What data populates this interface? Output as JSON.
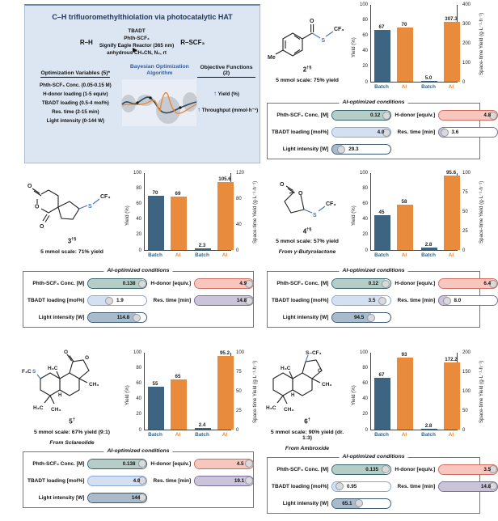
{
  "colors": {
    "batch_bar": "#3d6480",
    "ai_bar": "#e88b3c",
    "header_bg": "#dce6f3",
    "navy_text": "#1f3864",
    "bond_blue": "#4472c4"
  },
  "header": {
    "title": "C–H trifluoromethylthiolation via photocatalytic HAT",
    "reactant": "R–H",
    "product": "R–SCF₃",
    "arrow_above": [
      "TBADT",
      "Phth-SCF₃",
      "Signify Eagle Reactor (365 nm)"
    ],
    "arrow_below": "anhydrous CH₃CN, N₂, rt",
    "variables_title": "Optimization Variables (5)*",
    "variables": [
      "Phth-SCF₃ Conc. (0.05-0.15 M)",
      "H-donor loading (1-5 equiv)",
      "TBADT loading (0.5-4 mol%)",
      "Res. time (2-15 min)",
      "Light intensity (0-144 W)"
    ],
    "bo_title": "Bayesian Optimization Algorithm",
    "objectives_title": "Objective Functions (2)",
    "objectives": [
      {
        "arrow": "↑",
        "label": "Yield (%)"
      },
      {
        "arrow": "↑",
        "label": "Throughput (mmol·h⁻¹)"
      }
    ]
  },
  "axis": {
    "left_label": "Yield (%)",
    "right_label": "Space-time Yield (g·L⁻¹·h⁻¹)",
    "categories": [
      "Batch",
      "AI",
      "Batch",
      "AI"
    ]
  },
  "conditions_labels": {
    "box_title": "AI-optimized conditions",
    "conc": "Phth-SCF₃ Conc. [M]",
    "hdonor": "H-donor [equiv.]",
    "tbadt": "TBADT loading [mol%]",
    "res": "Res. time [min]",
    "light": "Light intensity [W]"
  },
  "panels": [
    {
      "compound_number": "2",
      "compound_sup": "†§",
      "scale_note": "5 mmol scale: 75% yield",
      "from_note": "",
      "structure_labels": {
        "me": "Me",
        "o": "O",
        "s": "S",
        "cf3": "CF₃"
      },
      "chart_data": {
        "type": "bar",
        "categories": [
          "Batch",
          "AI",
          "Batch",
          "AI"
        ],
        "series": [
          {
            "name": "Yield (%)",
            "axis": "left",
            "values": [
              67,
              70
            ]
          },
          {
            "name": "Space-time Yield (g·L⁻¹·h⁻¹)",
            "axis": "right",
            "values": [
              5.0,
              307.3
            ]
          }
        ],
        "value_labels": [
          "67",
          "70",
          "5.0",
          "307.3"
        ],
        "left_axis": {
          "label": "Yield (%)",
          "ticks": [
            0,
            20,
            40,
            60,
            80,
            100
          ],
          "max": 100
        },
        "right_axis": {
          "label": "Space-time Yield (g·L⁻¹·h⁻¹)",
          "ticks": [
            0,
            100,
            200,
            300,
            400
          ],
          "max": 400
        }
      },
      "conditions": {
        "conc": {
          "value": "0.12",
          "fill": 93
        },
        "hdonor": {
          "value": "4.8",
          "fill": 100
        },
        "tbadt": {
          "value": "4.0",
          "fill": 100
        },
        "res": {
          "value": "3.6",
          "fill": 10
        },
        "light": {
          "value": "29.3",
          "fill": 16
        }
      }
    },
    {
      "compound_number": "3",
      "compound_sup": "†§",
      "scale_note": "5 mmol scale: 71% yield",
      "from_note": "",
      "structure_labels": {
        "o_ring": "O",
        "o_top": "O",
        "o_bot": "O",
        "s": "S",
        "cf3": "CF₃"
      },
      "chart_data": {
        "type": "bar",
        "categories": [
          "Batch",
          "AI",
          "Batch",
          "AI"
        ],
        "series": [
          {
            "name": "Yield (%)",
            "axis": "left",
            "values": [
              70,
              69
            ]
          },
          {
            "name": "Space-time Yield (g·L⁻¹·h⁻¹)",
            "axis": "right",
            "values": [
              2.3,
              105.6
            ]
          }
        ],
        "value_labels": [
          "70",
          "69",
          "2.3",
          "105.6"
        ],
        "left_axis": {
          "label": "Yield (%)",
          "ticks": [
            0,
            20,
            40,
            60,
            80,
            100
          ],
          "max": 100
        },
        "right_axis": {
          "label": "Space-time Yield (g·L⁻¹·h⁻¹)",
          "ticks": [
            0,
            40,
            80,
            120
          ],
          "max": 120
        }
      },
      "conditions": {
        "conc": {
          "value": "0.138",
          "fill": 92
        },
        "hdonor": {
          "value": "4.9",
          "fill": 100
        },
        "tbadt": {
          "value": "1.9",
          "fill": 36
        },
        "res": {
          "value": "14.8",
          "fill": 100
        },
        "light": {
          "value": "114.8",
          "fill": 82
        }
      }
    },
    {
      "compound_number": "4",
      "compound_sup": "†§",
      "scale_note": "5 mmol scale: 57% yield",
      "from_note": "From γ-Butyrolactone",
      "structure_labels": {
        "o_carbonyl": "O",
        "o_ring": "O",
        "s": "S",
        "cf3": "CF₃"
      },
      "chart_data": {
        "type": "bar",
        "categories": [
          "Batch",
          "AI",
          "Batch",
          "AI"
        ],
        "series": [
          {
            "name": "Yield (%)",
            "axis": "left",
            "values": [
              45,
              58
            ]
          },
          {
            "name": "Space-time Yield (g·L⁻¹·h⁻¹)",
            "axis": "right",
            "values": [
              2.8,
              95.6
            ]
          }
        ],
        "value_labels": [
          "45",
          "58",
          "2.8",
          "95.6"
        ],
        "left_axis": {
          "label": "Yield (%)",
          "ticks": [
            0,
            20,
            40,
            60,
            80,
            100
          ],
          "max": 100
        },
        "right_axis": {
          "label": "Space-time Yield (g·L⁻¹·h⁻¹)",
          "ticks": [
            0,
            25,
            50,
            75,
            100
          ],
          "max": 100
        }
      },
      "conditions": {
        "conc": {
          "value": "0.12",
          "fill": 90
        },
        "hdonor": {
          "value": "6.4",
          "fill": 100
        },
        "tbadt": {
          "value": "3.5",
          "fill": 85
        },
        "res": {
          "value": "8.0",
          "fill": 14
        },
        "light": {
          "value": "94.5",
          "fill": 66
        }
      }
    },
    {
      "compound_number": "5",
      "compound_sup": "†",
      "scale_note": "5 mmol scale: 67% yield (9:1)",
      "from_note": "From Sclareolide",
      "structure_labels": {
        "f3c": "F₃C",
        "s": "S",
        "h3c_top": "H₃C",
        "o_carbonyl": "O",
        "o_ring": "O",
        "ch3_right": "CH₃",
        "h3c_bot": "H₃C",
        "ch3_bot": "CH₃",
        "h": "H"
      },
      "chart_data": {
        "type": "bar",
        "categories": [
          "Batch",
          "AI",
          "Batch",
          "AI"
        ],
        "series": [
          {
            "name": "Yield (%)",
            "axis": "left",
            "values": [
              55,
              65
            ]
          },
          {
            "name": "Space-time Yield (g·L⁻¹·h⁻¹)",
            "axis": "right",
            "values": [
              2.4,
              95.2
            ]
          }
        ],
        "value_labels": [
          "55",
          "65",
          "2.4",
          "95.2"
        ],
        "left_axis": {
          "label": "Yield (%)",
          "ticks": [
            0,
            20,
            40,
            60,
            80,
            100
          ],
          "max": 100
        },
        "right_axis": {
          "label": "Space-time Yield (g·L⁻¹·h⁻¹)",
          "ticks": [
            0,
            25,
            50,
            75,
            100
          ],
          "max": 100
        }
      },
      "conditions": {
        "conc": {
          "value": "0.138",
          "fill": 92
        },
        "hdonor": {
          "value": "4.5",
          "fill": 95
        },
        "tbadt": {
          "value": "4.0",
          "fill": 100
        },
        "res": {
          "value": "19.1",
          "fill": 96
        },
        "light": {
          "value": "144",
          "fill": 100
        }
      }
    },
    {
      "compound_number": "6",
      "compound_sup": "†",
      "scale_note": "5 mmol scale: 90% yield (dr. 1:3)",
      "from_note": "From Ambroxide",
      "structure_labels": {
        "scf3": "S–CF₃",
        "h3c_top": "H₃C",
        "o_ring": "O",
        "ch3_right": "CH₃",
        "h3c_bot": "H₃C",
        "ch3_bot": "CH₃",
        "h": "H"
      },
      "chart_data": {
        "type": "bar",
        "categories": [
          "Batch",
          "AI",
          "Batch",
          "AI"
        ],
        "series": [
          {
            "name": "Yield (%)",
            "axis": "left",
            "values": [
              67,
              93
            ]
          },
          {
            "name": "Space-time Yield (g·L⁻¹·h⁻¹)",
            "axis": "right",
            "values": [
              2.8,
              172.2
            ]
          }
        ],
        "value_labels": [
          "67",
          "93",
          "2.8",
          "172.2"
        ],
        "left_axis": {
          "label": "Yield (%)",
          "ticks": [
            0,
            20,
            40,
            60,
            80,
            100
          ],
          "max": 100
        },
        "right_axis": {
          "label": "Space-time Yield (g·L⁻¹·h⁻¹)",
          "ticks": [
            0,
            50,
            100,
            150,
            200
          ],
          "max": 200
        }
      },
      "conditions": {
        "conc": {
          "value": "0.135",
          "fill": 90
        },
        "hdonor": {
          "value": "3.5",
          "fill": 100
        },
        "tbadt": {
          "value": "0.95",
          "fill": 13
        },
        "res": {
          "value": "14.8",
          "fill": 100
        },
        "light": {
          "value": "65.1",
          "fill": 46
        }
      }
    }
  ]
}
